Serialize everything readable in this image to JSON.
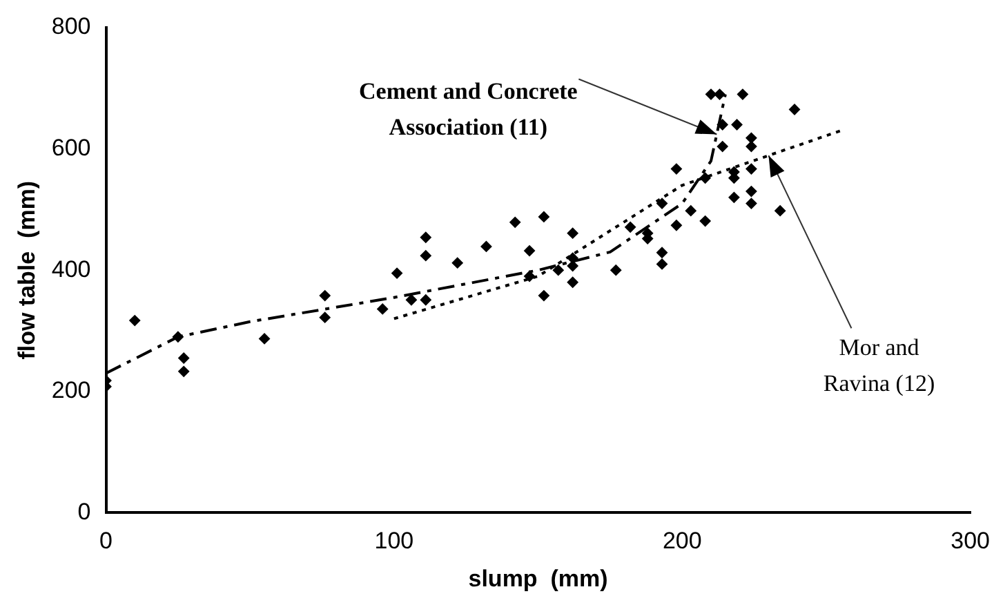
{
  "chart_data": {
    "type": "scatter",
    "xlabel": "slump  (mm)",
    "ylabel": "flow table  (mm)",
    "xlim": [
      0,
      300
    ],
    "ylim": [
      0,
      800
    ],
    "xticks": [
      0,
      100,
      200,
      300
    ],
    "yticks": [
      0,
      200,
      400,
      600,
      800
    ],
    "grid": false,
    "legend": false,
    "marker": "diamond",
    "series": [
      {
        "color": "#000000",
        "x": [
          0,
          0,
          10,
          25,
          27,
          27,
          55,
          76,
          76,
          96,
          101,
          106,
          111,
          111,
          111,
          122,
          132,
          142,
          147,
          147,
          152,
          152,
          157,
          162,
          162,
          162,
          162,
          177,
          182,
          188,
          188,
          193,
          193,
          193,
          198,
          198,
          203,
          208,
          208,
          210,
          213,
          214,
          214,
          218,
          218,
          218,
          219,
          221,
          224,
          224,
          224,
          224,
          224,
          234,
          239
        ],
        "values": [
          218,
          208,
          317,
          290,
          255,
          233,
          287,
          358,
          322,
          336,
          395,
          351,
          351,
          454,
          424,
          412,
          439,
          479,
          432,
          390,
          488,
          358,
          400,
          461,
          420,
          407,
          380,
          400,
          471,
          461,
          452,
          429,
          410,
          510,
          474,
          567,
          498,
          552,
          481,
          690,
          690,
          640,
          604,
          562,
          552,
          520,
          640,
          690,
          618,
          604,
          567,
          530,
          510,
          498,
          665
        ]
      },
      {
        "type": "line",
        "color": "#000000",
        "line_style": "dashed",
        "marker": "none",
        "x": [
          0,
          25,
          50,
          100,
          150,
          175,
          200,
          210,
          215
        ],
        "values": [
          230,
          290,
          315,
          355,
          400,
          430,
          510,
          580,
          690
        ]
      },
      {
        "type": "line",
        "color": "#000000",
        "line_style": "dotted",
        "marker": "none",
        "x": [
          100,
          150,
          200,
          255
        ],
        "values": [
          320,
          390,
          540,
          630
        ]
      }
    ],
    "annotations": [
      {
        "text": "Cement and Concrete\nAssociation (11)",
        "x": 212,
        "y": 624
      },
      {
        "text": "Mor and\nRavina (12)",
        "x": 230,
        "y": 589
      }
    ]
  }
}
